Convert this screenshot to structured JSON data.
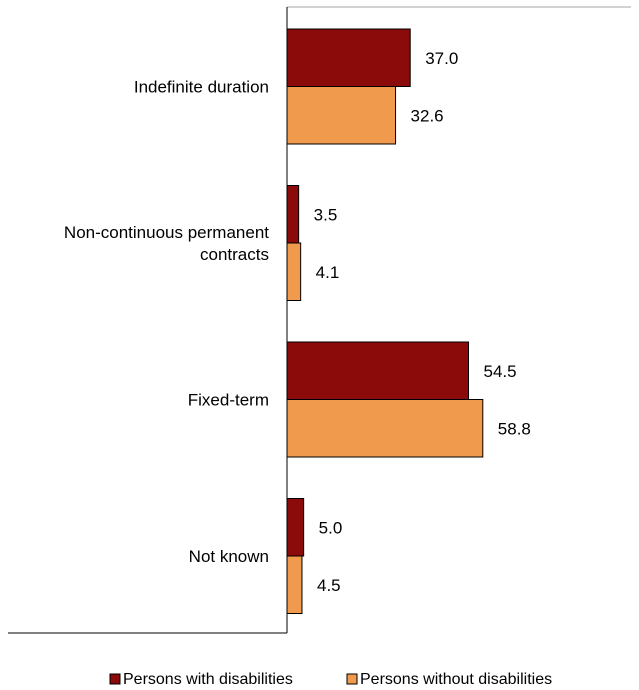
{
  "chart_data": {
    "type": "bar",
    "orientation": "horizontal",
    "categories": [
      "Indefinite duration",
      "Non-continuous permanent contracts",
      "Fixed-term",
      "Not known"
    ],
    "category_lines": [
      [
        "Indefinite duration"
      ],
      [
        "Non-continuous permanent",
        "contracts"
      ],
      [
        "Fixed-term"
      ],
      [
        "Not known"
      ]
    ],
    "series": [
      {
        "name": "Persons with disabilities",
        "values": [
          37.0,
          3.5,
          54.5,
          5.0
        ],
        "value_labels": [
          "37.0",
          "3.5",
          "54.5",
          "5.0"
        ],
        "color": "#8B0A0A"
      },
      {
        "name": "Persons without disabilities",
        "values": [
          32.6,
          4.1,
          58.8,
          4.5
        ],
        "value_labels": [
          "32.6",
          "4.1",
          "58.8",
          "4.5"
        ],
        "color": "#F09A4D"
      }
    ],
    "title": "",
    "xlabel": "",
    "ylabel": "",
    "xlim": [
      0,
      70
    ],
    "grid": false,
    "legend_position": "bottom"
  }
}
